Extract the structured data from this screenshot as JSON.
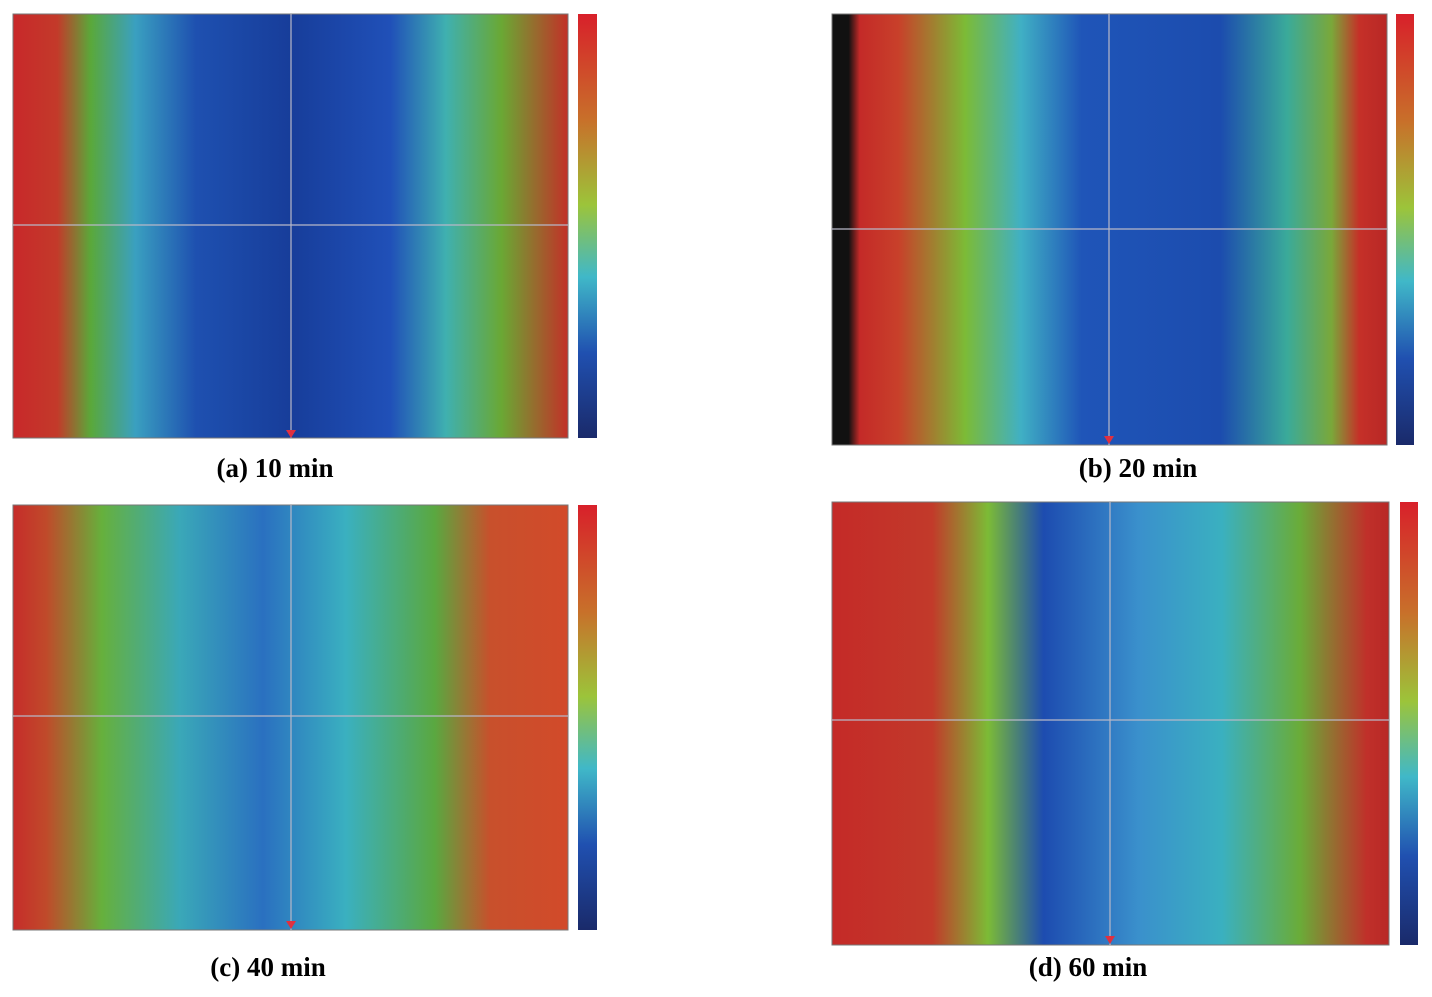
{
  "panels": [
    {
      "caption": "(a) 10 min"
    },
    {
      "caption": "(b) 20 min"
    },
    {
      "caption": "(c) 40 min"
    },
    {
      "caption": "(d) 60 min"
    }
  ]
}
